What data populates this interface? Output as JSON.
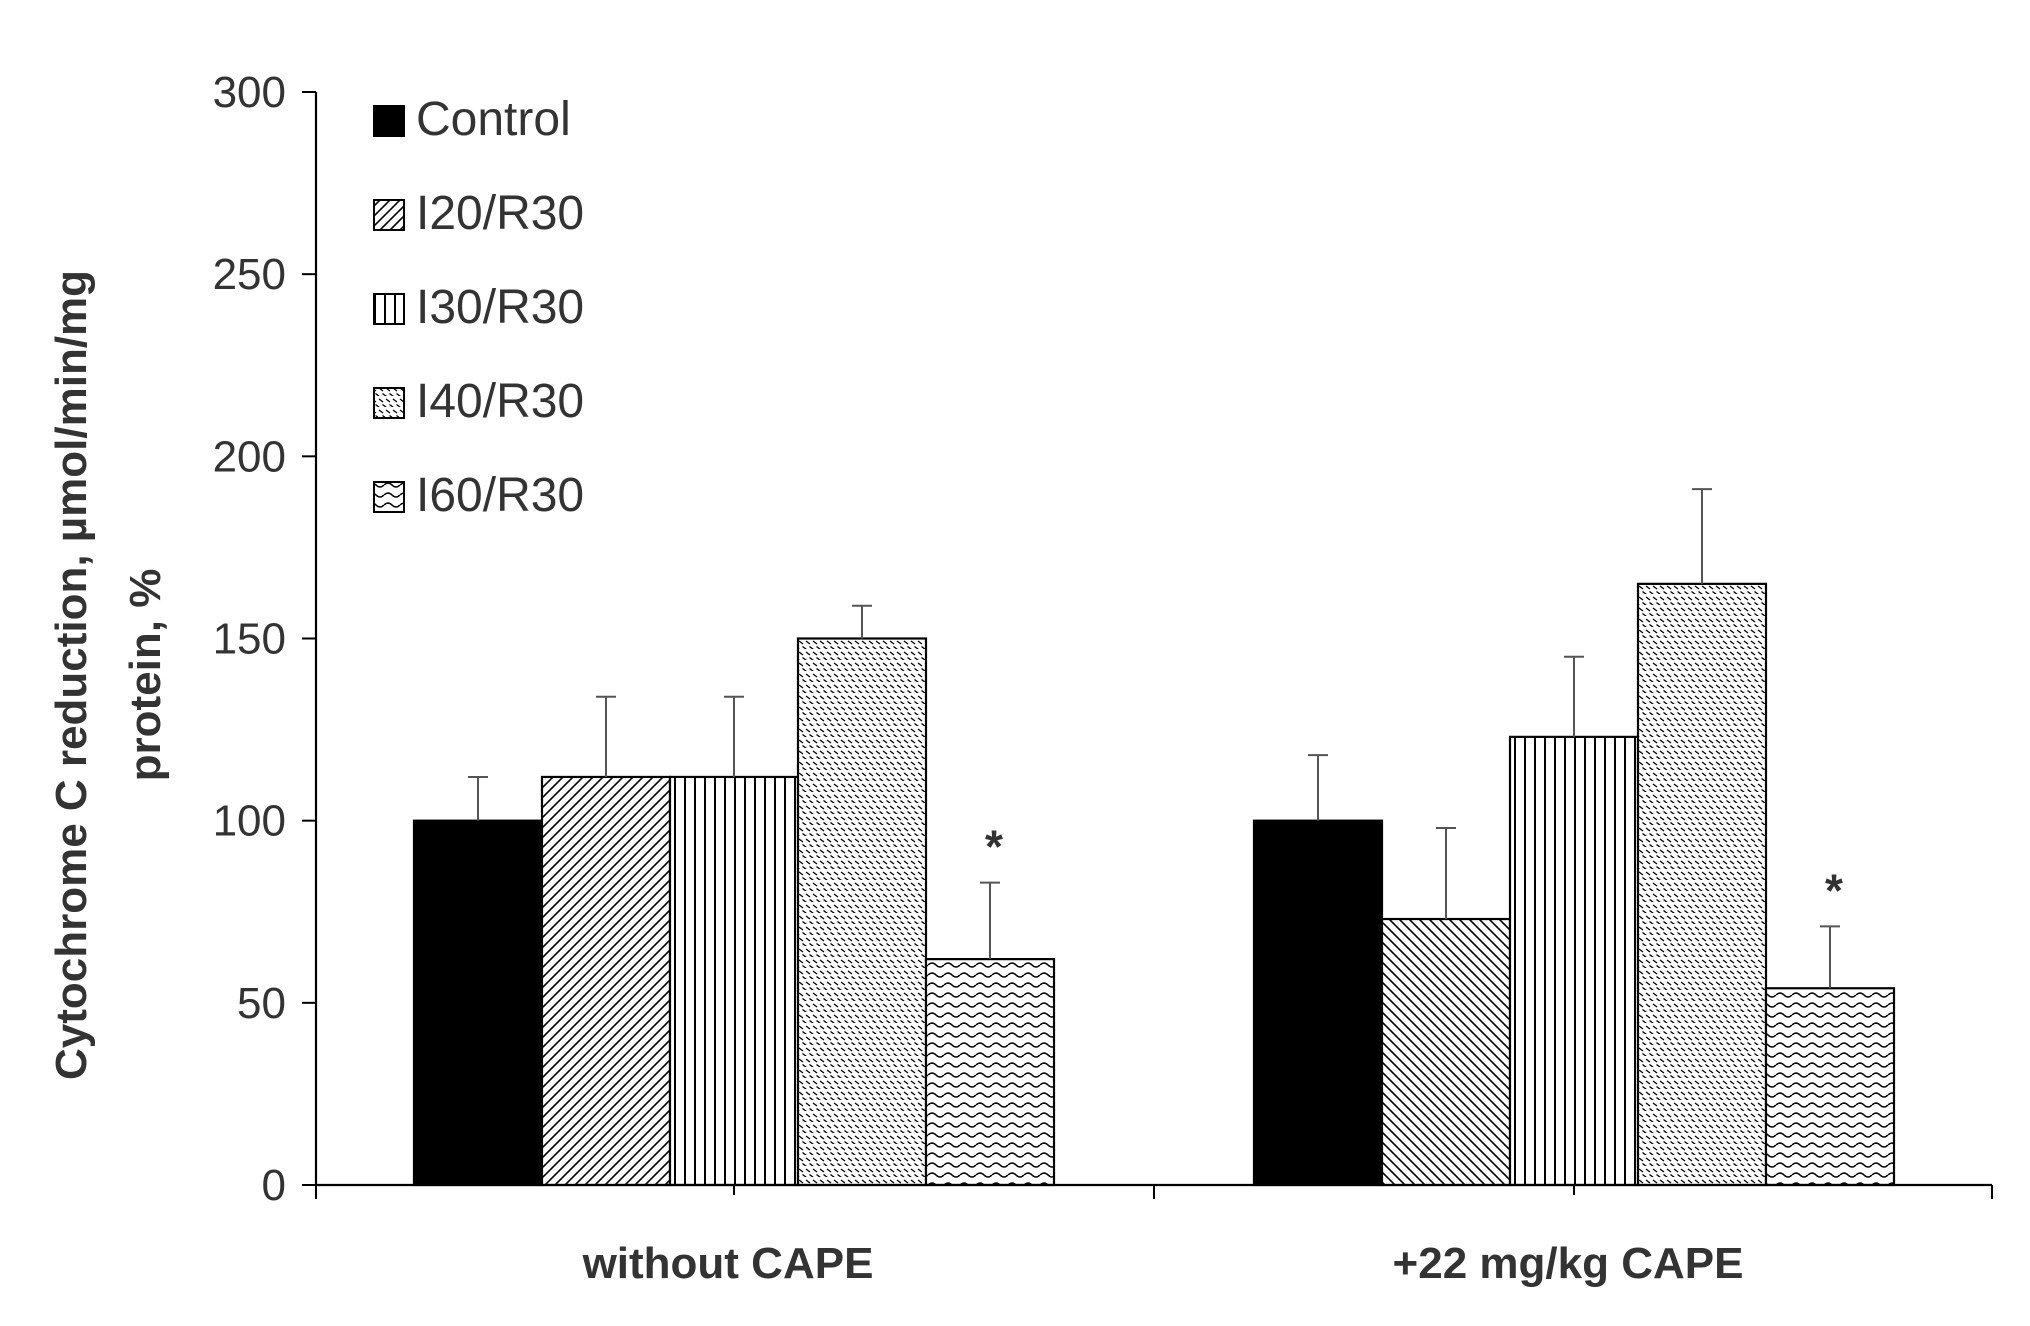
{
  "chart_data": {
    "type": "bar",
    "title": "",
    "ylabel": "Cytochrome C reduction, µmol/min/mg protein, %",
    "ylabel_lines": [
      "Cytochrome C reduction, µmol/min/mg",
      "protein, %"
    ],
    "xlabel": "",
    "categories": [
      "without CAPE",
      "+22 mg/kg CAPE"
    ],
    "ylim": [
      0,
      300
    ],
    "yticks": [
      0,
      50,
      100,
      150,
      200,
      250,
      300
    ],
    "ytick_labels": [
      "0",
      "50",
      "100",
      "150",
      "200",
      "250",
      "300"
    ],
    "grid": false,
    "legend_position": "top-left",
    "series": [
      {
        "name": "Control",
        "pattern": "solid",
        "values": [
          100,
          100
        ],
        "errors": [
          12,
          18
        ],
        "significance": [
          "",
          ""
        ]
      },
      {
        "name": "I20/R30",
        "pattern": "diagonal",
        "values": [
          112,
          73
        ],
        "errors": [
          22,
          25
        ],
        "significance": [
          "",
          ""
        ]
      },
      {
        "name": "I30/R30",
        "pattern": "vertical",
        "values": [
          112,
          123
        ],
        "errors": [
          22,
          22
        ],
        "significance": [
          "",
          ""
        ]
      },
      {
        "name": "I40/R30",
        "pattern": "dashed-diagonal",
        "values": [
          150,
          165
        ],
        "errors": [
          9,
          26
        ],
        "significance": [
          "",
          ""
        ]
      },
      {
        "name": "I60/R30",
        "pattern": "wave",
        "values": [
          62,
          54
        ],
        "errors": [
          21,
          17
        ],
        "significance": [
          "*",
          "*"
        ]
      }
    ]
  },
  "colors": {
    "ink": "#000000",
    "axis": "#000000",
    "errorbar": "#555555",
    "text": "#333333",
    "background": "#ffffff"
  }
}
